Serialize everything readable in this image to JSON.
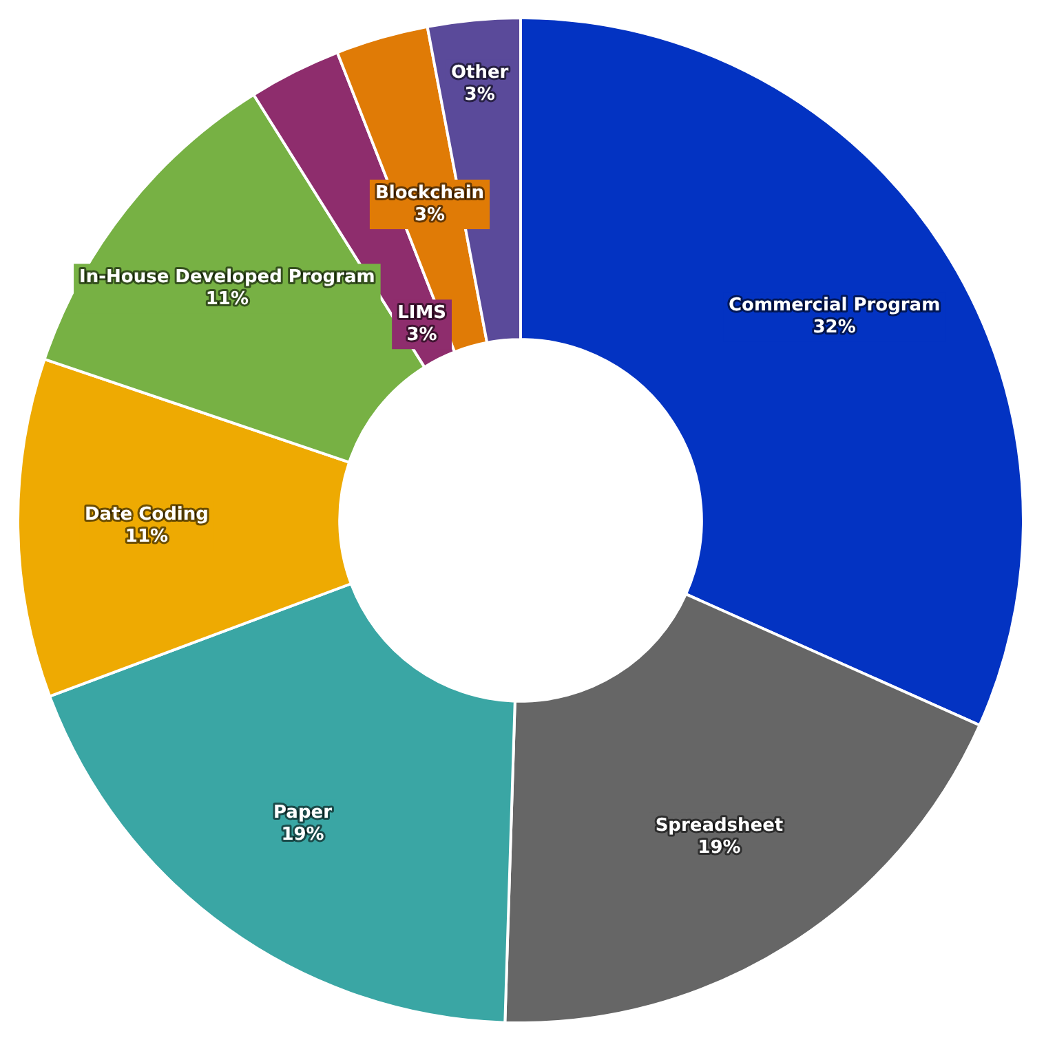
{
  "chart_data": {
    "type": "donut",
    "categories": [
      "Commercial Program",
      "Spreadsheet",
      "Paper",
      "Date Coding",
      "In-House Developed Program",
      "LIMS",
      "Blockchain",
      "Other"
    ],
    "values": [
      32,
      19,
      19,
      11,
      11,
      3,
      3,
      3
    ],
    "value_labels": [
      "32%",
      "19%",
      "19%",
      "11%",
      "11%",
      "3%",
      "3%",
      "3%"
    ],
    "colors": [
      "#0333c2",
      "#666666",
      "#3aa6a4",
      "#eeaa02",
      "#77b144",
      "#8e2d6d",
      "#e07b06",
      "#5a4a9a"
    ],
    "legend": false
  }
}
